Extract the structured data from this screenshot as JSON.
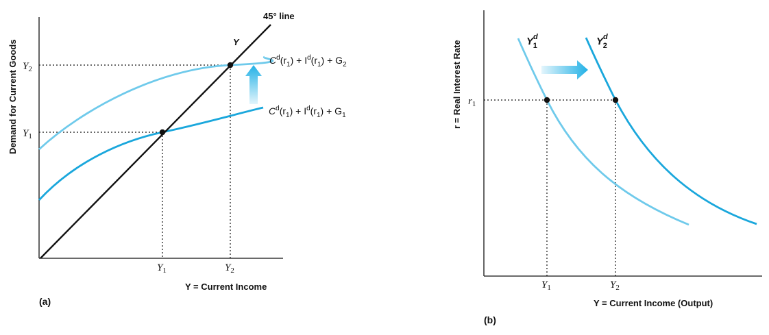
{
  "chart_data": [
    {
      "type": "line",
      "panel_label": "(a)",
      "xlabel": "Y = Current Income",
      "ylabel": "Demand for Current Goods",
      "x_ticks": [
        "Y1",
        "Y2"
      ],
      "y_ticks": [
        "Y1",
        "Y2"
      ],
      "line45_label": "45° line",
      "line45_point_label": "Y",
      "series": [
        {
          "name": "Cd(r1) + Id(r1) + G2",
          "color": "#6fcaeb"
        },
        {
          "name": "Cd(r1) + Id(r1) + G1",
          "color": "#1aa7dc"
        }
      ],
      "series_labels": [
        {
          "c": "C",
          "sup1": "d",
          "mid1": "(r",
          "sub1": "1",
          "mid2": ") + I",
          "sup2": "d",
          "mid3": "(r",
          "sub2": "1",
          "mid4": ") + G",
          "sub3": "2"
        },
        {
          "c": "C",
          "sup1": "d",
          "mid1": "(r",
          "sub1": "1",
          "mid2": ") + I",
          "sup2": "d",
          "mid3": "(r",
          "sub2": "1",
          "mid4": ") + G",
          "sub3": "1"
        }
      ],
      "equilibria": [
        {
          "x": "Y1",
          "y": "Y1"
        },
        {
          "x": "Y2",
          "y": "Y2"
        }
      ],
      "arrow": "up"
    },
    {
      "type": "line",
      "panel_label": "(b)",
      "xlabel": "Y = Current Income (Output)",
      "ylabel": "r = Real Interest Rate",
      "x_ticks": [
        "Y1",
        "Y2"
      ],
      "y_ticks": [
        "r1"
      ],
      "series": [
        {
          "name": "Y1d",
          "color": "#6fcaeb"
        },
        {
          "name": "Y2d",
          "color": "#1aa7dc"
        }
      ],
      "series_labels": [
        {
          "base": "Y",
          "sup": "d",
          "sub": "1"
        },
        {
          "base": "Y",
          "sup": "d",
          "sub": "2"
        }
      ],
      "points": [
        {
          "x": "Y1",
          "y": "r1"
        },
        {
          "x": "Y2",
          "y": "r1"
        }
      ],
      "arrow": "right"
    }
  ],
  "colors": {
    "light_blue": "#6fcaeb",
    "dark_blue": "#1aa7dc",
    "black": "#111111",
    "arrow_gradient_start": "#e3f5fc",
    "arrow_gradient_end": "#22b1e6"
  }
}
